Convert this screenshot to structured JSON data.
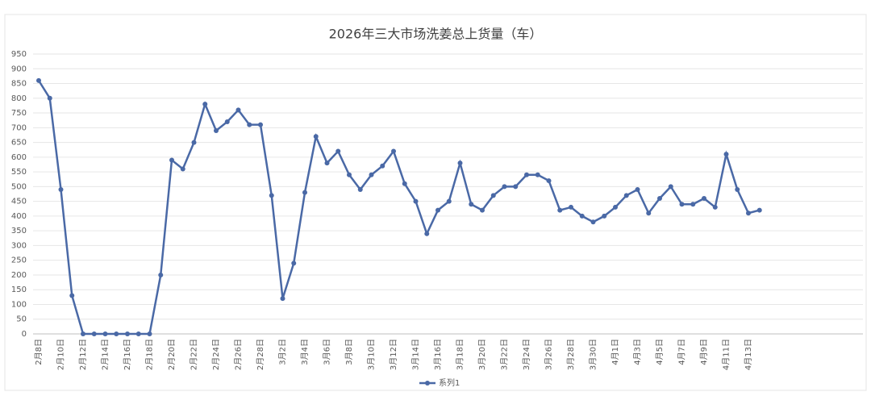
{
  "chart_data": {
    "type": "line",
    "title": "2026年三大市场洗姜总上货量（车）",
    "categories": [
      "2月8日",
      null,
      "2月10日",
      null,
      "2月12日",
      null,
      "2月14日",
      null,
      "2月16日",
      null,
      "2月18日",
      null,
      "2月20日",
      null,
      "2月22日",
      null,
      "2月24日",
      null,
      "2月26日",
      null,
      "2月28日",
      null,
      "3月2日",
      null,
      "3月4日",
      null,
      "3月6日",
      null,
      "3月8日",
      null,
      "3月10日",
      null,
      "3月12日",
      null,
      "3月14日",
      null,
      "3月16日",
      null,
      "3月18日",
      null,
      "3月20日",
      null,
      "3月22日",
      null,
      "3月24日",
      null,
      "3月26日",
      null,
      "3月28日",
      null,
      "3月30日",
      null,
      "4月1日",
      null,
      "4月3日",
      null,
      "4月5日",
      null,
      "4月7日",
      null,
      "4月9日",
      null,
      "4月11日",
      null,
      "4月13日",
      null
    ],
    "series": [
      {
        "name": "系列1",
        "color": "#4a69a6",
        "values": [
          860,
          800,
          490,
          130,
          0,
          0,
          0,
          0,
          0,
          0,
          0,
          200,
          590,
          560,
          650,
          780,
          690,
          720,
          760,
          710,
          710,
          470,
          120,
          240,
          480,
          670,
          580,
          620,
          540,
          490,
          540,
          570,
          620,
          510,
          450,
          340,
          420,
          450,
          580,
          440,
          420,
          470,
          500,
          500,
          540,
          540,
          520,
          420,
          430,
          400,
          380,
          400,
          430,
          470,
          490,
          410,
          460,
          500,
          440,
          440,
          460,
          430,
          610,
          490,
          410,
          420
        ]
      }
    ],
    "ylim": [
      0,
      950
    ],
    "yticks": [
      0,
      50,
      100,
      150,
      200,
      250,
      300,
      350,
      400,
      450,
      500,
      550,
      600,
      650,
      700,
      750,
      800,
      850,
      900,
      950
    ],
    "grid": true,
    "legend": "bottom"
  }
}
